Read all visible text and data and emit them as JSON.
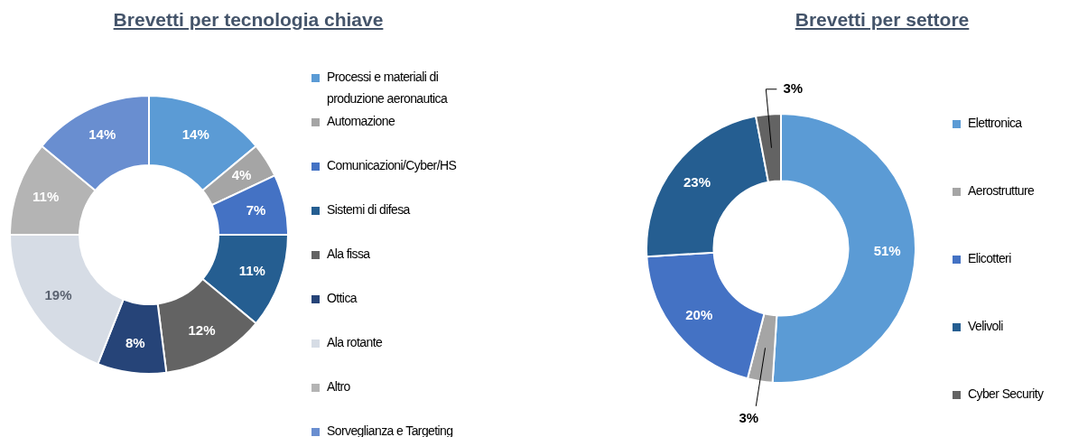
{
  "chart_data": [
    {
      "type": "donut",
      "title": "Brevetti per tecnologia chiave",
      "categories": [
        "Processi e materiali di produzione aeronautica",
        "Automazione",
        "Comunicazioni/Cyber/HS",
        "Sistemi di difesa",
        "Ala fissa",
        "Ottica",
        "Ala rotante",
        "Altro",
        "Sorveglianza e Targeting"
      ],
      "values": [
        14,
        4,
        7,
        11,
        12,
        8,
        19,
        11,
        14
      ],
      "colors": [
        "#5b9bd5",
        "#a5a5a5",
        "#4472c4",
        "#255e91",
        "#636363",
        "#264478",
        "#d6dce5",
        "#b4b4b4",
        "#698ed0"
      ],
      "value_labels": [
        "14%",
        "4%",
        "7%",
        "11%",
        "12%",
        "8%",
        "19%",
        "11%",
        "14%"
      ],
      "legend": "right"
    },
    {
      "type": "donut",
      "title": "Brevetti per settore",
      "categories": [
        "Elettronica",
        "Aerostrutture",
        "Elicotteri",
        "Velivoli",
        "Cyber Security"
      ],
      "values": [
        51,
        3,
        20,
        23,
        3
      ],
      "colors": [
        "#5b9bd5",
        "#a5a5a5",
        "#4472c4",
        "#255e91",
        "#636363"
      ],
      "value_labels": [
        "51%",
        "3%",
        "20%",
        "23%",
        "3%"
      ],
      "legend": "right"
    }
  ]
}
